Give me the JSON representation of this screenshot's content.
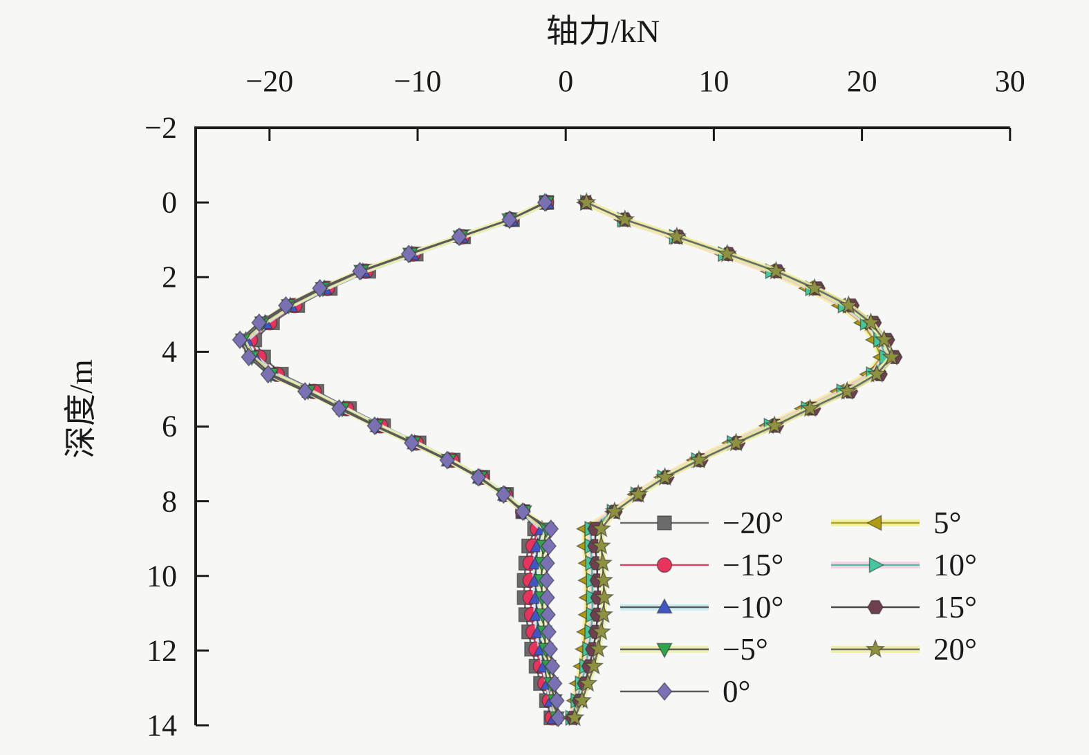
{
  "chart_data": {
    "type": "line",
    "title": "轴力/kN",
    "xlabel": "轴力/kN",
    "ylabel": "深度/m",
    "orientation": "depth profile: x = axial force (kN) on top axis, y = depth (m) increasing downward",
    "xlim": [
      -25,
      30
    ],
    "ylim": [
      -2,
      14
    ],
    "grid": false,
    "legend_position": "inside lower-right, two columns",
    "x_ticks": [
      {
        "v": -20,
        "t": "−20"
      },
      {
        "v": -10,
        "t": "−10"
      },
      {
        "v": 0,
        "t": "0"
      },
      {
        "v": 10,
        "t": "10"
      },
      {
        "v": 20,
        "t": "20"
      },
      {
        "v": 30,
        "t": "30"
      }
    ],
    "y_ticks": [
      {
        "v": -2,
        "t": "−2"
      },
      {
        "v": 0,
        "t": "0"
      },
      {
        "v": 2,
        "t": "2"
      },
      {
        "v": 4,
        "t": "4"
      },
      {
        "v": 6,
        "t": "6"
      },
      {
        "v": 8,
        "t": "8"
      },
      {
        "v": 10,
        "t": "10"
      },
      {
        "v": 12,
        "t": "12"
      },
      {
        "v": 14,
        "t": "14"
      }
    ],
    "depths": [
      0,
      0.46,
      0.92,
      1.38,
      1.84,
      2.3,
      2.76,
      3.22,
      3.68,
      4.14,
      4.6,
      5.06,
      5.52,
      5.98,
      6.44,
      6.9,
      7.36,
      7.82,
      8.28,
      8.74,
      9.2,
      9.66,
      10.12,
      10.58,
      11.04,
      11.5,
      11.96,
      12.42,
      12.88,
      13.34,
      13.8
    ],
    "series": [
      {
        "label": "−20°",
        "marker": "square",
        "marker_color": "#6b6b6b",
        "line_color": "#6b6b6b",
        "glow": null,
        "values": [
          -1.3,
          -3.6,
          -6.9,
          -10.1,
          -13.3,
          -15.9,
          -18.1,
          -19.8,
          -21.0,
          -20.4,
          -19.2,
          -16.8,
          -14.6,
          -12.3,
          -9.9,
          -7.6,
          -5.6,
          -4.0,
          -2.9,
          -2.1,
          -2.5,
          -2.7,
          -2.8,
          -2.8,
          -2.7,
          -2.5,
          -2.3,
          -2.0,
          -1.7,
          -1.3,
          -1.0
        ]
      },
      {
        "label": "−15°",
        "marker": "circle",
        "marker_color": "#e8335c",
        "line_color": "#dc3c64",
        "glow": null,
        "values": [
          -1.3,
          -3.7,
          -7.0,
          -10.3,
          -13.5,
          -16.1,
          -18.3,
          -20.0,
          -21.3,
          -20.7,
          -19.5,
          -17.0,
          -14.8,
          -12.5,
          -10.1,
          -7.7,
          -5.7,
          -4.1,
          -2.9,
          -1.9,
          -2.2,
          -2.4,
          -2.4,
          -2.4,
          -2.3,
          -2.2,
          -2.0,
          -1.7,
          -1.4,
          -1.1,
          -0.9
        ]
      },
      {
        "label": "−10°",
        "marker": "triangle-up",
        "marker_color": "#4156c5",
        "line_color": "#5a5a5a",
        "glow": "#c9ecf2",
        "values": [
          -1.3,
          -3.7,
          -7.1,
          -10.4,
          -13.7,
          -16.3,
          -18.6,
          -20.3,
          -21.6,
          -21.0,
          -19.7,
          -17.3,
          -15.0,
          -12.7,
          -10.2,
          -7.9,
          -5.8,
          -4.1,
          -2.8,
          -1.6,
          -1.9,
          -2.0,
          -2.05,
          -2.0,
          -1.95,
          -1.85,
          -1.65,
          -1.45,
          -1.2,
          -0.95,
          -0.75
        ]
      },
      {
        "label": "−5°",
        "marker": "triangle-down",
        "marker_color": "#2fa44d",
        "line_color": "#5a5a5a",
        "glow": "#eef0a6",
        "values": [
          -1.3,
          -3.8,
          -7.1,
          -10.5,
          -13.8,
          -16.4,
          -18.7,
          -20.5,
          -21.8,
          -21.2,
          -19.9,
          -17.4,
          -15.1,
          -12.8,
          -10.3,
          -7.9,
          -5.8,
          -4.2,
          -2.8,
          -1.3,
          -1.5,
          -1.6,
          -1.65,
          -1.6,
          -1.55,
          -1.45,
          -1.35,
          -1.15,
          -1.0,
          -0.75,
          -0.6
        ]
      },
      {
        "label": "0°",
        "marker": "diamond",
        "marker_color": "#7a70b4",
        "line_color": "#5a5a5a",
        "glow": null,
        "values": [
          -1.4,
          -3.8,
          -7.2,
          -10.6,
          -13.9,
          -16.6,
          -18.9,
          -20.7,
          -22.0,
          -21.4,
          -20.1,
          -17.6,
          -15.3,
          -12.9,
          -10.4,
          -8.0,
          -5.9,
          -4.2,
          -2.9,
          -1.0,
          -1.15,
          -1.25,
          -1.3,
          -1.25,
          -1.2,
          -1.15,
          -1.05,
          -0.9,
          -0.75,
          -0.6,
          -0.5
        ]
      },
      {
        "label": "5°",
        "marker": "triangle-left",
        "marker_color": "#b09a10",
        "line_color": "#aba428",
        "glow": "#f2ef9e",
        "values": [
          1.3,
          3.8,
          7.3,
          10.6,
          13.7,
          16.3,
          18.5,
          20.0,
          20.8,
          21.3,
          20.4,
          18.4,
          16.0,
          13.6,
          11.1,
          8.7,
          6.5,
          4.7,
          3.2,
          1.3,
          1.3,
          1.4,
          1.4,
          1.45,
          1.4,
          1.3,
          1.2,
          1.05,
          0.8,
          0.6,
          0.35
        ]
      },
      {
        "label": "10°",
        "marker": "triangle-right",
        "marker_color": "#43c79c",
        "line_color": "#4fc0a2",
        "glow": "#f9cfe3",
        "values": [
          1.4,
          3.9,
          7.4,
          10.7,
          13.9,
          16.6,
          18.8,
          20.3,
          21.2,
          21.6,
          20.7,
          18.7,
          16.3,
          13.8,
          11.3,
          8.9,
          6.6,
          4.8,
          3.2,
          1.7,
          1.7,
          1.75,
          1.8,
          1.8,
          1.8,
          1.7,
          1.55,
          1.35,
          1.05,
          0.75,
          0.4
        ]
      },
      {
        "label": "15°",
        "marker": "hexagon",
        "marker_color": "#6e4050",
        "line_color": "#4a4a4a",
        "glow": null,
        "values": [
          1.4,
          4.0,
          7.6,
          11.0,
          14.3,
          17.0,
          19.3,
          20.8,
          21.7,
          22.2,
          21.2,
          19.2,
          16.7,
          14.2,
          11.6,
          9.1,
          6.8,
          4.9,
          3.3,
          2.0,
          2.0,
          2.1,
          2.15,
          2.2,
          2.15,
          2.05,
          1.85,
          1.6,
          1.3,
          0.95,
          0.5
        ]
      },
      {
        "label": "20°",
        "marker": "star",
        "marker_color": "#8e9140",
        "line_color": "#6b6b6b",
        "glow": "#edee9c",
        "values": [
          1.4,
          4.0,
          7.5,
          10.9,
          14.2,
          16.8,
          19.1,
          20.6,
          21.5,
          22.0,
          21.0,
          19.0,
          16.5,
          14.1,
          11.5,
          9.0,
          6.7,
          4.9,
          3.3,
          2.4,
          2.4,
          2.5,
          2.55,
          2.6,
          2.55,
          2.4,
          2.2,
          1.9,
          1.5,
          1.1,
          0.6
        ]
      }
    ],
    "axis_color": "#1a1a1a",
    "background_color": "#f7f7f5"
  }
}
